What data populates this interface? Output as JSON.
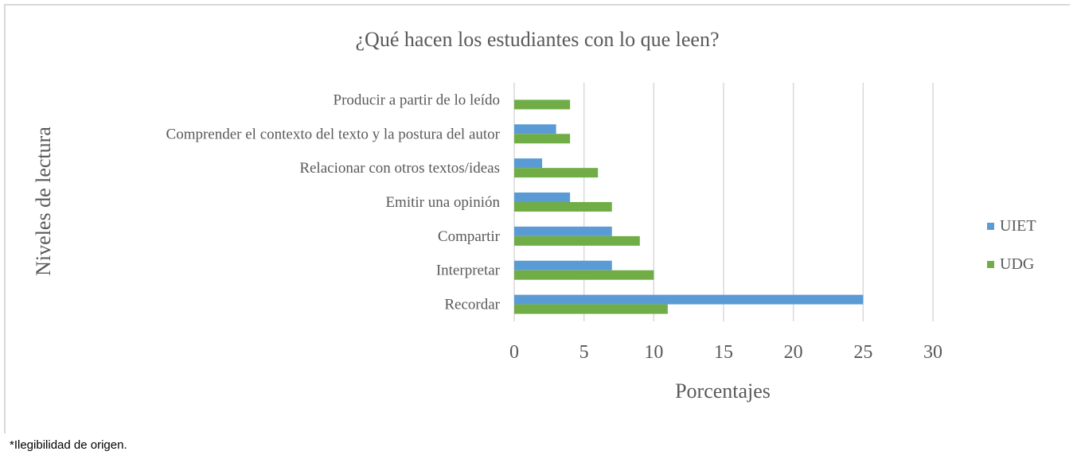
{
  "chart_data": {
    "type": "bar",
    "orientation": "horizontal",
    "title": "¿Qué hacen los estudiantes con lo que leen?",
    "xlabel": "Porcentajes",
    "ylabel": "Niveles de lectura",
    "categories": [
      "Recordar",
      "Interpretar",
      "Compartir",
      "Emitir una opinión",
      "Relacionar con otros textos/ideas",
      "Comprender el contexto del texto y la postura del autor",
      "Producir a partir de lo leído"
    ],
    "series": [
      {
        "name": "UIET",
        "color": "#5b9bd5",
        "values": [
          25,
          7,
          7,
          4,
          2,
          3,
          0
        ]
      },
      {
        "name": "UDG",
        "color": "#70ad47",
        "values": [
          11,
          10,
          9,
          7,
          6,
          4,
          4
        ]
      }
    ],
    "xlim": [
      0,
      30
    ],
    "xticks": [
      "0",
      "5",
      "10",
      "15",
      "20",
      "25",
      "30"
    ],
    "grid": true,
    "legend": "right"
  },
  "footnote": "*Ilegibilidad de origen."
}
